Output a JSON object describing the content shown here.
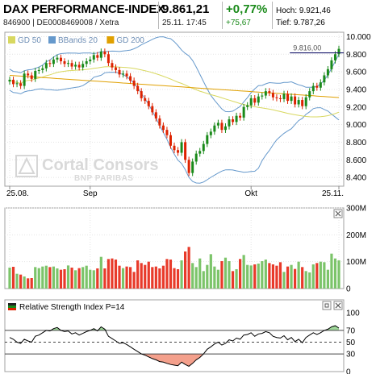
{
  "header": {
    "title": "DAX PERFORMANCE-INDEX",
    "subtitle": "846900 | DE0008469008 / Xetra",
    "price": "9.861,21",
    "datetime": "25.11. 17:45",
    "change_pct": "+0,77%",
    "change_abs": "+75,67",
    "high": "Hoch: 9.921,46",
    "low": "Tief: 9.787,26"
  },
  "watermark": {
    "brand": "Cortal Consors",
    "sub": "BNP PARIBAS"
  },
  "colors": {
    "up": "#1a8a1a",
    "down": "#dd2200",
    "gd50": "#d8d860",
    "bb": "#6699cc",
    "gd200": "#e0a000",
    "volume_up": "#7cc46a",
    "volume_down": "#e83a2a",
    "rsi_line": "#000000",
    "rsi_high_fill": "#9fd89a",
    "rsi_low_fill": "#f4a08c"
  },
  "chart_data": [
    {
      "type": "candlestick",
      "legend": [
        {
          "key": "gd50",
          "label": "GD 50",
          "color": "#d8d860"
        },
        {
          "key": "bb",
          "label": "BBands 20",
          "color": "#6699cc"
        },
        {
          "key": "gd200",
          "label": "GD 200",
          "color": "#e0a000"
        }
      ],
      "x_ticks": [
        "25.08.",
        "Sep",
        "Okt",
        "25.11."
      ],
      "y_ticks": [
        "10.000",
        "9.800",
        "9.600",
        "9.400",
        "9.200",
        "9.000",
        "8.800",
        "8.600",
        "8.400"
      ],
      "ylim": [
        8300,
        10050
      ],
      "annotation": "9.816,00",
      "annotation_value": 9816,
      "close": [
        9510,
        9460,
        9470,
        9440,
        9580,
        9560,
        9520,
        9610,
        9620,
        9640,
        9700,
        9690,
        9740,
        9760,
        9720,
        9690,
        9700,
        9660,
        9680,
        9650,
        9690,
        9720,
        9740,
        9790,
        9760,
        9830,
        9800,
        9700,
        9650,
        9620,
        9570,
        9580,
        9550,
        9500,
        9440,
        9380,
        9300,
        9270,
        9210,
        9140,
        9070,
        8990,
        8940,
        8880,
        8760,
        8710,
        8680,
        8800,
        8600,
        8450,
        8580,
        8670,
        8700,
        8780,
        8880,
        8920,
        8990,
        9020,
        8940,
        8980,
        9060,
        9030,
        9100,
        9080,
        9200,
        9220,
        9300,
        9250,
        9320,
        9330,
        9380,
        9360,
        9310,
        9300,
        9290,
        9350,
        9270,
        9320,
        9230,
        9280,
        9210,
        9310,
        9380,
        9440,
        9420,
        9480,
        9560,
        9630,
        9730,
        9800,
        9861
      ],
      "volume_million": [
        78,
        81,
        55,
        52,
        45,
        38,
        39,
        80,
        76,
        82,
        85,
        80,
        82,
        75,
        70,
        72,
        86,
        78,
        68,
        76,
        80,
        85,
        70,
        68,
        75,
        118,
        75,
        110,
        112,
        108,
        85,
        76,
        82,
        80,
        62,
        105,
        95,
        88,
        100,
        80,
        82,
        75,
        85,
        110,
        108,
        76,
        72,
        105,
        138,
        155,
        95,
        80,
        112,
        65,
        88,
        128,
        82,
        70,
        102,
        115,
        102,
        65,
        72,
        110,
        125,
        88,
        86,
        90,
        93,
        102,
        108,
        95,
        90,
        85,
        98,
        62,
        82,
        88,
        73,
        100,
        80,
        65,
        60,
        90,
        95,
        100,
        98,
        70,
        130,
        112,
        105
      ],
      "volume_ticks": [
        "300M",
        "200M",
        "100M",
        "0"
      ]
    },
    {
      "type": "line",
      "title": "Relative Strength Index P=14",
      "y_ticks": [
        "100",
        "70",
        "50",
        "30",
        "0"
      ],
      "ylim": [
        0,
        100
      ],
      "levels": [
        70,
        50,
        30
      ],
      "values": [
        58,
        55,
        50,
        48,
        55,
        52,
        50,
        60,
        62,
        66,
        70,
        69,
        73,
        75,
        70,
        68,
        69,
        64,
        66,
        62,
        65,
        68,
        70,
        73,
        69,
        76,
        72,
        60,
        56,
        52,
        48,
        49,
        46,
        42,
        38,
        34,
        30,
        28,
        25,
        22,
        20,
        17,
        16,
        14,
        12,
        11,
        10,
        16,
        12,
        9,
        14,
        20,
        24,
        30,
        38,
        42,
        47,
        50,
        45,
        48,
        54,
        52,
        57,
        55,
        62,
        63,
        66,
        60,
        64,
        65,
        68,
        66,
        60,
        58,
        57,
        61,
        54,
        58,
        51,
        55,
        49,
        58,
        62,
        66,
        63,
        66,
        70,
        72,
        76,
        78,
        74
      ]
    }
  ]
}
